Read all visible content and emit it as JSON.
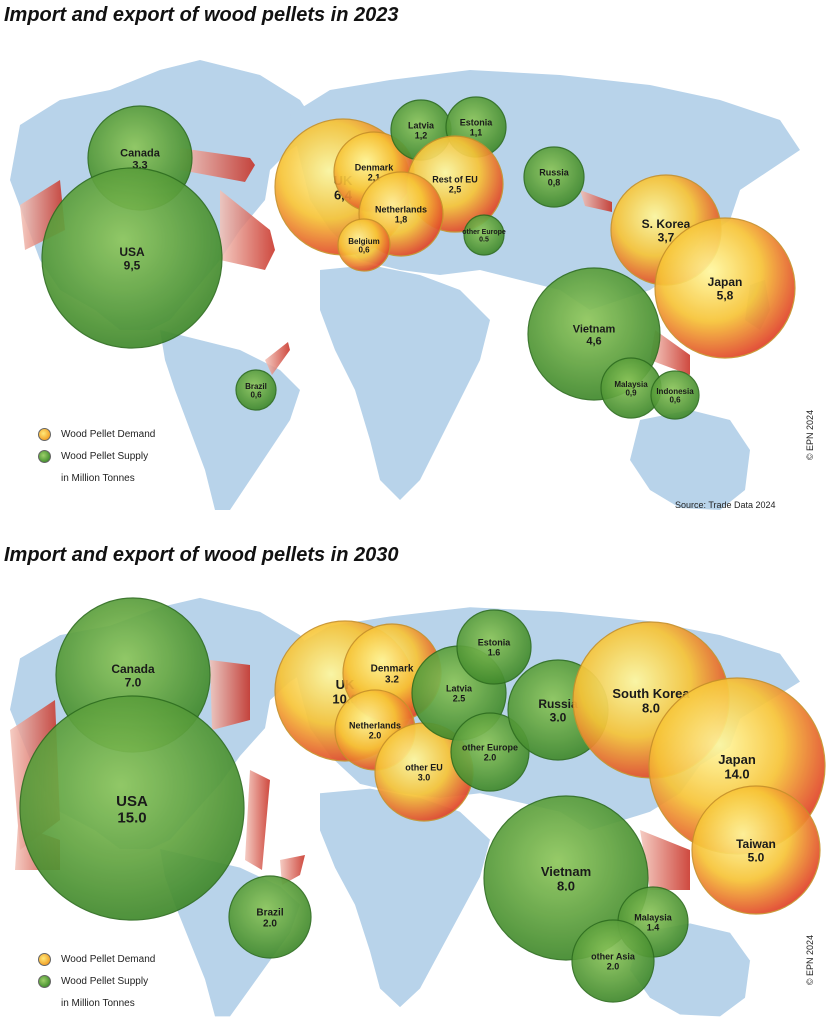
{
  "maps": [
    {
      "title": "Import and export of wood pellets in 2023",
      "legend": {
        "demand": "Wood Pellet Demand",
        "supply": "Wood Pellet Supply",
        "unit": "in Million Tonnes"
      },
      "source": "Source: Trade Data 2024",
      "copyright": "© EPN 2024",
      "bubbles": [
        {
          "name": "Canada",
          "value": "3,3",
          "kind": "supply"
        },
        {
          "name": "USA",
          "value": "9,5",
          "kind": "supply"
        },
        {
          "name": "Brazil",
          "value": "0,6",
          "kind": "supply"
        },
        {
          "name": "UK",
          "value": "6,4",
          "kind": "demand"
        },
        {
          "name": "Denmark",
          "value": "2,1",
          "kind": "demand"
        },
        {
          "name": "Latvia",
          "value": "1,2",
          "kind": "supply"
        },
        {
          "name": "Estonia",
          "value": "1,1",
          "kind": "supply"
        },
        {
          "name": "Rest of EU",
          "value": "2,5",
          "kind": "demand"
        },
        {
          "name": "Netherlands",
          "value": "1,8",
          "kind": "demand"
        },
        {
          "name": "Belgium",
          "value": "0,6",
          "kind": "demand"
        },
        {
          "name": "other Europe",
          "value": "0.5",
          "kind": "supply"
        },
        {
          "name": "Russia",
          "value": "0,8",
          "kind": "supply"
        },
        {
          "name": "S. Korea",
          "value": "3,7",
          "kind": "demand"
        },
        {
          "name": "Japan",
          "value": "5,8",
          "kind": "demand"
        },
        {
          "name": "Vietnam",
          "value": "4,6",
          "kind": "supply"
        },
        {
          "name": "Malaysia",
          "value": "0,9",
          "kind": "supply"
        },
        {
          "name": "Indonesia",
          "value": "0,6",
          "kind": "supply"
        }
      ]
    },
    {
      "title": "Import and export of wood pellets in 2030",
      "legend": {
        "demand": "Wood Pellet Demand",
        "supply": "Wood Pellet Supply",
        "unit": "in Million Tonnes"
      },
      "copyright": "© EPN 2024",
      "bubbles": [
        {
          "name": "Canada",
          "value": "7.0",
          "kind": "supply"
        },
        {
          "name": "USA",
          "value": "15.0",
          "kind": "supply"
        },
        {
          "name": "Brazil",
          "value": "2.0",
          "kind": "supply"
        },
        {
          "name": "UK",
          "value": "10.0",
          "kind": "demand"
        },
        {
          "name": "Denmark",
          "value": "3.2",
          "kind": "demand"
        },
        {
          "name": "Netherlands",
          "value": "2.0",
          "kind": "demand"
        },
        {
          "name": "other EU",
          "value": "3.0",
          "kind": "demand"
        },
        {
          "name": "Latvia",
          "value": "2.5",
          "kind": "supply"
        },
        {
          "name": "Estonia",
          "value": "1.6",
          "kind": "supply"
        },
        {
          "name": "other Europe",
          "value": "2.0",
          "kind": "supply"
        },
        {
          "name": "Russia",
          "value": "3.0",
          "kind": "supply"
        },
        {
          "name": "South Korea",
          "value": "8.0",
          "kind": "demand"
        },
        {
          "name": "Japan",
          "value": "14.0",
          "kind": "demand"
        },
        {
          "name": "Taiwan",
          "value": "5.0",
          "kind": "demand"
        },
        {
          "name": "Vietnam",
          "value": "8.0",
          "kind": "supply"
        },
        {
          "name": "Malaysia",
          "value": "1.4",
          "kind": "supply"
        },
        {
          "name": "other Asia",
          "value": "2.0",
          "kind": "supply"
        }
      ]
    }
  ]
}
